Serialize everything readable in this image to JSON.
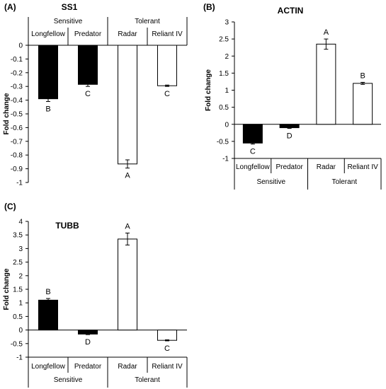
{
  "colors": {
    "sensitive": "#000000",
    "tolerant": "#ffffff",
    "stroke": "#000000"
  },
  "chart_data": [
    {
      "panel": "(A)",
      "title": "SS1",
      "type": "bar",
      "ylabel": "Fold change",
      "ylim": [
        -1,
        0
      ],
      "yticks": [
        0,
        -0.1,
        -0.2,
        -0.3,
        -0.4,
        -0.5,
        -0.6,
        -0.7,
        -0.8,
        -0.9,
        -1
      ],
      "ytick_labels": [
        "0",
        "-0.1",
        "-0.2",
        "-0.3",
        "-0.4",
        "-0.5",
        "-0.6",
        "-0.7",
        "-0.8",
        "-0.9",
        "-1"
      ],
      "categories": [
        "Longfellow",
        "Predator",
        "Radar",
        "Reliant IV"
      ],
      "groups": [
        {
          "label": "Sensitive",
          "categories": [
            "Longfellow",
            "Predator"
          ]
        },
        {
          "label": "Tolerant",
          "categories": [
            "Radar",
            "Reliant IV"
          ]
        }
      ],
      "values": [
        -0.39,
        -0.285,
        -0.865,
        -0.295
      ],
      "errors": [
        0.02,
        0.015,
        0.03,
        0.005
      ],
      "letters": [
        "B",
        "C",
        "A",
        "C"
      ],
      "fills": [
        "sensitive",
        "sensitive",
        "tolerant",
        "tolerant"
      ],
      "category_axis": "top"
    },
    {
      "panel": "(B)",
      "title": "ACTIN",
      "type": "bar",
      "ylabel": "Fold change",
      "ylim": [
        -1,
        3
      ],
      "yticks": [
        3,
        2.5,
        2,
        1.5,
        1,
        0.5,
        0,
        -0.5,
        -1
      ],
      "ytick_labels": [
        "3",
        "2.5",
        "2",
        "1.5",
        "1",
        "0.5",
        "0",
        "-0.5",
        "-1"
      ],
      "categories": [
        "Longfellow",
        "Predator",
        "Radar",
        "Reliant IV"
      ],
      "groups": [
        {
          "label": "Sensitive",
          "categories": [
            "Longfellow",
            "Predator"
          ]
        },
        {
          "label": "Tolerant",
          "categories": [
            "Radar",
            "Reliant IV"
          ]
        }
      ],
      "values": [
        -0.55,
        -0.1,
        2.35,
        1.2
      ],
      "errors": [
        0.03,
        0.02,
        0.15,
        0.03
      ],
      "letters": [
        "C",
        "D",
        "A",
        "B"
      ],
      "fills": [
        "sensitive",
        "sensitive",
        "tolerant",
        "tolerant"
      ],
      "category_axis": "bottom"
    },
    {
      "panel": "(C)",
      "title": "TUBB",
      "type": "bar",
      "ylabel": "Fold change",
      "ylim": [
        -1,
        4
      ],
      "yticks": [
        4,
        3.5,
        3,
        2.5,
        2,
        1.5,
        1,
        0.5,
        0,
        -0.5,
        -1
      ],
      "ytick_labels": [
        "4",
        "3.5",
        "3",
        "2.5",
        "2",
        "1.5",
        "1",
        "0.5",
        "0",
        "-0.5",
        "-1"
      ],
      "categories": [
        "Longfellow",
        "Predator",
        "Radar",
        "Reliant IV"
      ],
      "groups": [
        {
          "label": "Sensitive",
          "categories": [
            "Longfellow",
            "Predator"
          ]
        },
        {
          "label": "Tolerant",
          "categories": [
            "Radar",
            "Reliant IV"
          ]
        }
      ],
      "values": [
        1.1,
        -0.15,
        3.35,
        -0.38
      ],
      "errors": [
        0.06,
        0.02,
        0.22,
        0.02
      ],
      "letters": [
        "B",
        "D",
        "A",
        "C"
      ],
      "fills": [
        "sensitive",
        "sensitive",
        "tolerant",
        "tolerant"
      ],
      "category_axis": "bottom"
    }
  ]
}
